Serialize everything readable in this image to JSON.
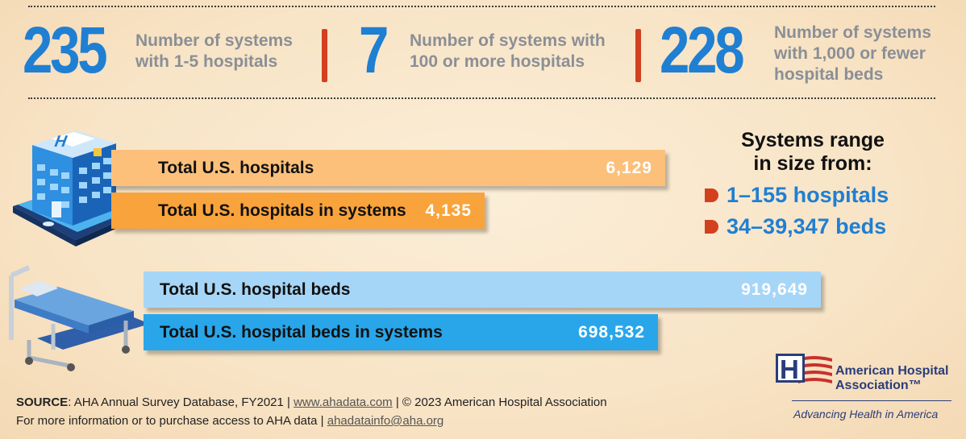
{
  "stats": [
    {
      "number": "235",
      "label_lines": [
        "Number of systems",
        "with 1-5 hospitals"
      ]
    },
    {
      "number": "7",
      "label_lines": [
        "Number of systems with",
        "100 or more hospitals"
      ]
    },
    {
      "number": "228",
      "label_lines": [
        "Number of systems",
        "with 1,000 or fewer",
        "hospital beds"
      ]
    }
  ],
  "chart_data": {
    "type": "bar",
    "orientation": "horizontal",
    "categories": [
      "Total U.S. hospitals",
      "Total U.S. hospitals in systems",
      "Total U.S. hospital beds",
      "Total U.S. hospital beds in systems"
    ],
    "values": [
      6129,
      4135,
      919649,
      698532
    ],
    "value_labels": [
      "6,129",
      "4,135",
      "919,649",
      "698,532"
    ],
    "groups": [
      {
        "name": "hospitals",
        "items": [
          0,
          1
        ],
        "colors": [
          "#fcc07b",
          "#f9a33c"
        ]
      },
      {
        "name": "beds",
        "items": [
          2,
          3
        ],
        "colors": [
          "#a6d6f7",
          "#29a6ea"
        ]
      }
    ]
  },
  "range": {
    "title_lines": [
      "Systems range",
      "in size from:"
    ],
    "items": [
      "1–155 hospitals",
      "34–39,347 beds"
    ],
    "accent": "#d2401f"
  },
  "footer": {
    "source_label": "SOURCE",
    "source_text": ": AHA Annual Survey Database, FY2021  |  ",
    "source_link": "www.ahadata.com",
    "copyright": "  |  © 2023 American Hospital Association",
    "info_text": "For more information or to purchase access to AHA data  |  ",
    "info_link": "ahadatainfo@aha.org"
  },
  "logo": {
    "letter": "H",
    "name_lines": [
      "American Hospital",
      "Association™"
    ],
    "tagline": "Advancing Health in America"
  },
  "colors": {
    "accent_blue": "#1f7fd3",
    "accent_red": "#d2401f",
    "navy": "#2a3d7a"
  }
}
